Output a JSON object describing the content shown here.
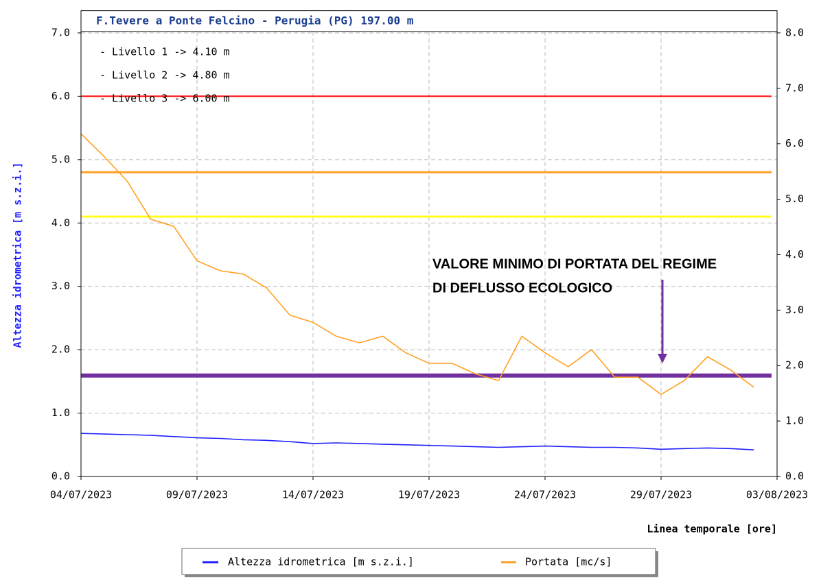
{
  "chart_data": {
    "type": "line",
    "title": "F.Tevere a Ponte Felcino - Perugia (PG) 197.00 m",
    "x_label": "Linea temporale [ore]",
    "y_label": "Altezza idrometrica [m s.z.i.]",
    "level_labels": [
      "- Livello 1 -> 4.10 m",
      "- Livello 2 -> 4.80 m",
      "- Livello 3 -> 6.00 m"
    ],
    "annotation": [
      "VALORE MINIMO DI PORTATA DEL REGIME",
      "DI DEFLUSSO ECOLOGICO"
    ],
    "x": [
      "04/07/2023",
      "05/07/2023",
      "06/07/2023",
      "07/07/2023",
      "08/07/2023",
      "09/07/2023",
      "10/07/2023",
      "11/07/2023",
      "12/07/2023",
      "13/07/2023",
      "14/07/2023",
      "15/07/2023",
      "16/07/2023",
      "17/07/2023",
      "18/07/2023",
      "19/07/2023",
      "20/07/2023",
      "21/07/2023",
      "22/07/2023",
      "23/07/2023",
      "24/07/2023",
      "25/07/2023",
      "26/07/2023",
      "27/07/2023",
      "28/07/2023",
      "29/07/2023",
      "30/07/2023",
      "31/07/2023",
      "01/08/2023",
      "02/08/2023"
    ],
    "xlim": [
      "04/07/2023",
      "03/08/2023"
    ],
    "xticks": [
      "04/07/2023",
      "09/07/2023",
      "14/07/2023",
      "19/07/2023",
      "24/07/2023",
      "29/07/2023",
      "03/08/2023"
    ],
    "ylim": [
      0,
      7.35
    ],
    "yticks": [
      {
        "value": 0,
        "label": "0.0"
      },
      {
        "value": 1,
        "label": "1.0"
      },
      {
        "value": 2,
        "label": "2.0"
      },
      {
        "value": 3,
        "label": "3.0"
      },
      {
        "value": 4,
        "label": "4.0"
      },
      {
        "value": 5,
        "label": "5.0"
      },
      {
        "value": 6,
        "label": "6.0"
      },
      {
        "value": 7,
        "label": "7.0"
      }
    ],
    "y2lim": [
      0,
      8.4
    ],
    "y2ticks": [
      {
        "value": 0,
        "label": "0.0"
      },
      {
        "value": 1,
        "label": "1.0"
      },
      {
        "value": 2,
        "label": "2.0"
      },
      {
        "value": 3,
        "label": "3.0"
      },
      {
        "value": 4,
        "label": "4.0"
      },
      {
        "value": 5,
        "label": "5.0"
      },
      {
        "value": 6,
        "label": "6.0"
      },
      {
        "value": 7,
        "label": "7.0"
      },
      {
        "value": 8,
        "label": "8.0"
      }
    ],
    "grid": true,
    "series": [
      {
        "name": "Altezza idrometrica [m s.z.i.]",
        "color": "#1f1fff",
        "values": [
          0.68,
          0.67,
          0.66,
          0.65,
          0.63,
          0.61,
          0.6,
          0.58,
          0.57,
          0.55,
          0.52,
          0.53,
          0.52,
          0.51,
          0.5,
          0.49,
          0.48,
          0.47,
          0.46,
          0.47,
          0.48,
          0.47,
          0.46,
          0.46,
          0.45,
          0.43,
          0.44,
          0.45,
          0.44,
          0.42
        ]
      },
      {
        "name": "Portata [mc/s]",
        "color": "#ffa020",
        "axis": "y2",
        "values": [
          6.18,
          5.77,
          5.32,
          4.64,
          4.51,
          3.89,
          3.71,
          3.65,
          3.4,
          2.91,
          2.78,
          2.53,
          2.41,
          2.53,
          2.23,
          2.04,
          2.04,
          1.85,
          1.73,
          2.53,
          2.23,
          1.98,
          2.29,
          1.79,
          1.79,
          1.48,
          1.73,
          2.16,
          1.92,
          1.61
        ]
      }
    ],
    "thresholds": [
      {
        "value": 6.0,
        "color": "#ff0000"
      },
      {
        "value": 4.8,
        "color": "#ffa020"
      },
      {
        "value": 4.1,
        "color": "#ffff20"
      },
      {
        "value": 1.82,
        "axis": "y2",
        "color": "#7030a0"
      }
    ]
  }
}
